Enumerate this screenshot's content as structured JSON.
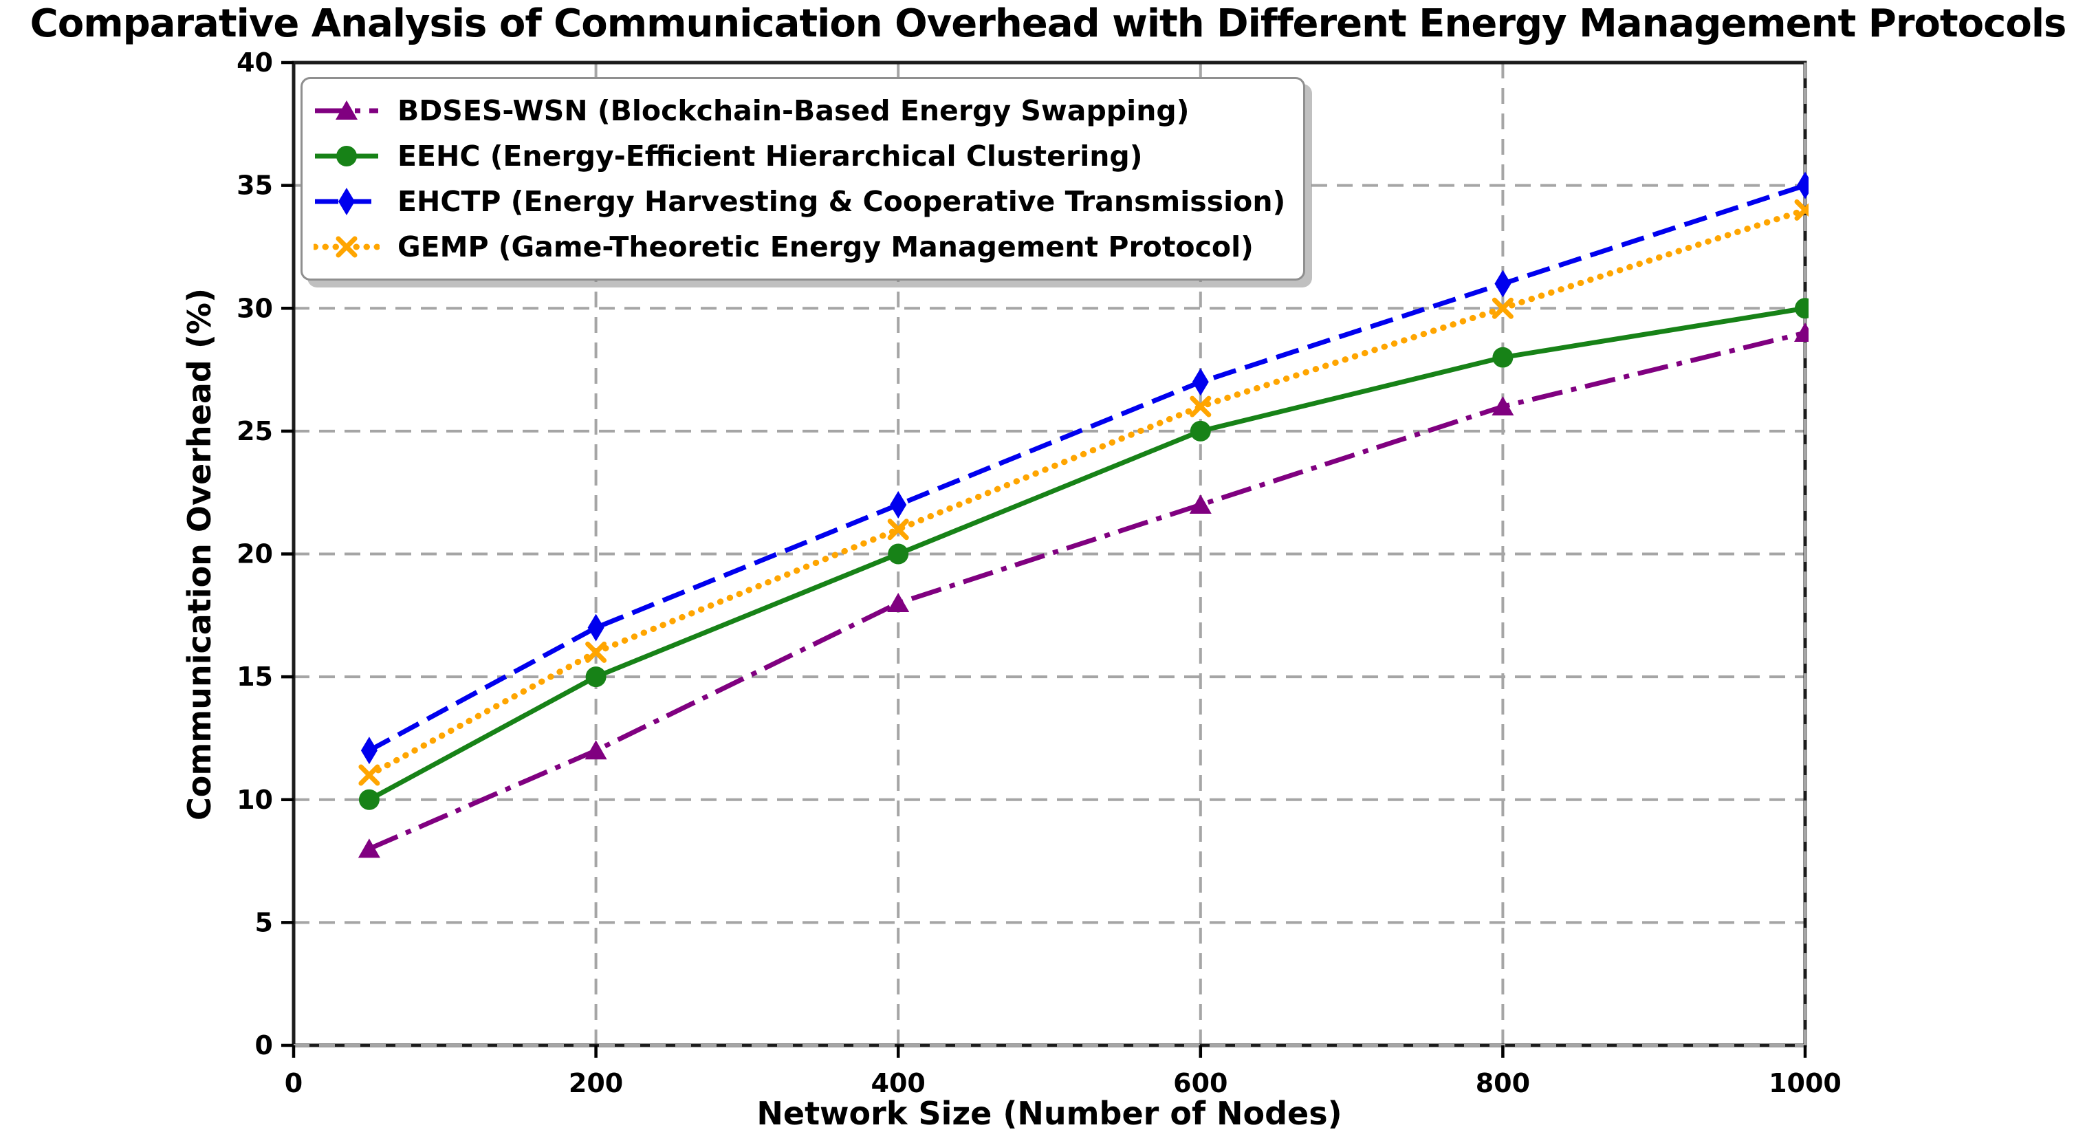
{
  "chart_data": {
    "type": "line",
    "title": "Comparative Analysis of Communication Overhead with Different Energy Management Protocols",
    "xlabel": "Network Size (Number of Nodes)",
    "ylabel": "Communication Overhead (%)",
    "x": [
      50,
      200,
      400,
      600,
      800,
      1000
    ],
    "xlim": [
      0,
      1000
    ],
    "ylim": [
      0,
      40
    ],
    "x_ticks": [
      0,
      200,
      400,
      600,
      800,
      1000
    ],
    "y_ticks": [
      0,
      5,
      10,
      15,
      20,
      25,
      30,
      35,
      40
    ],
    "grid": true,
    "grid_style": "dashed",
    "legend_position": "upper-left",
    "grid_color": "#a5a5a5",
    "axis_color": "#1c1c1c",
    "series": [
      {
        "name": "BDSES-WSN (Blockchain-Based Energy Swapping)",
        "values": [
          8,
          12,
          18,
          22,
          26,
          29
        ],
        "color": "#800080",
        "linestyle": "dashdot",
        "marker": "triangle"
      },
      {
        "name": "EEHC (Energy-Efficient Hierarchical Clustering)",
        "values": [
          10,
          15,
          20,
          25,
          28,
          30
        ],
        "color": "#178217",
        "linestyle": "solid",
        "marker": "circle"
      },
      {
        "name": "EHCTP (Energy Harvesting & Cooperative Transmission)",
        "values": [
          12,
          17,
          22,
          27,
          31,
          35
        ],
        "color": "#0000ee",
        "linestyle": "dashed",
        "marker": "diamond"
      },
      {
        "name": "GEMP (Game-Theoretic Energy Management Protocol)",
        "values": [
          11,
          16,
          21,
          26,
          30,
          34
        ],
        "color": "#ffa500",
        "linestyle": "dotted",
        "marker": "x"
      }
    ]
  }
}
